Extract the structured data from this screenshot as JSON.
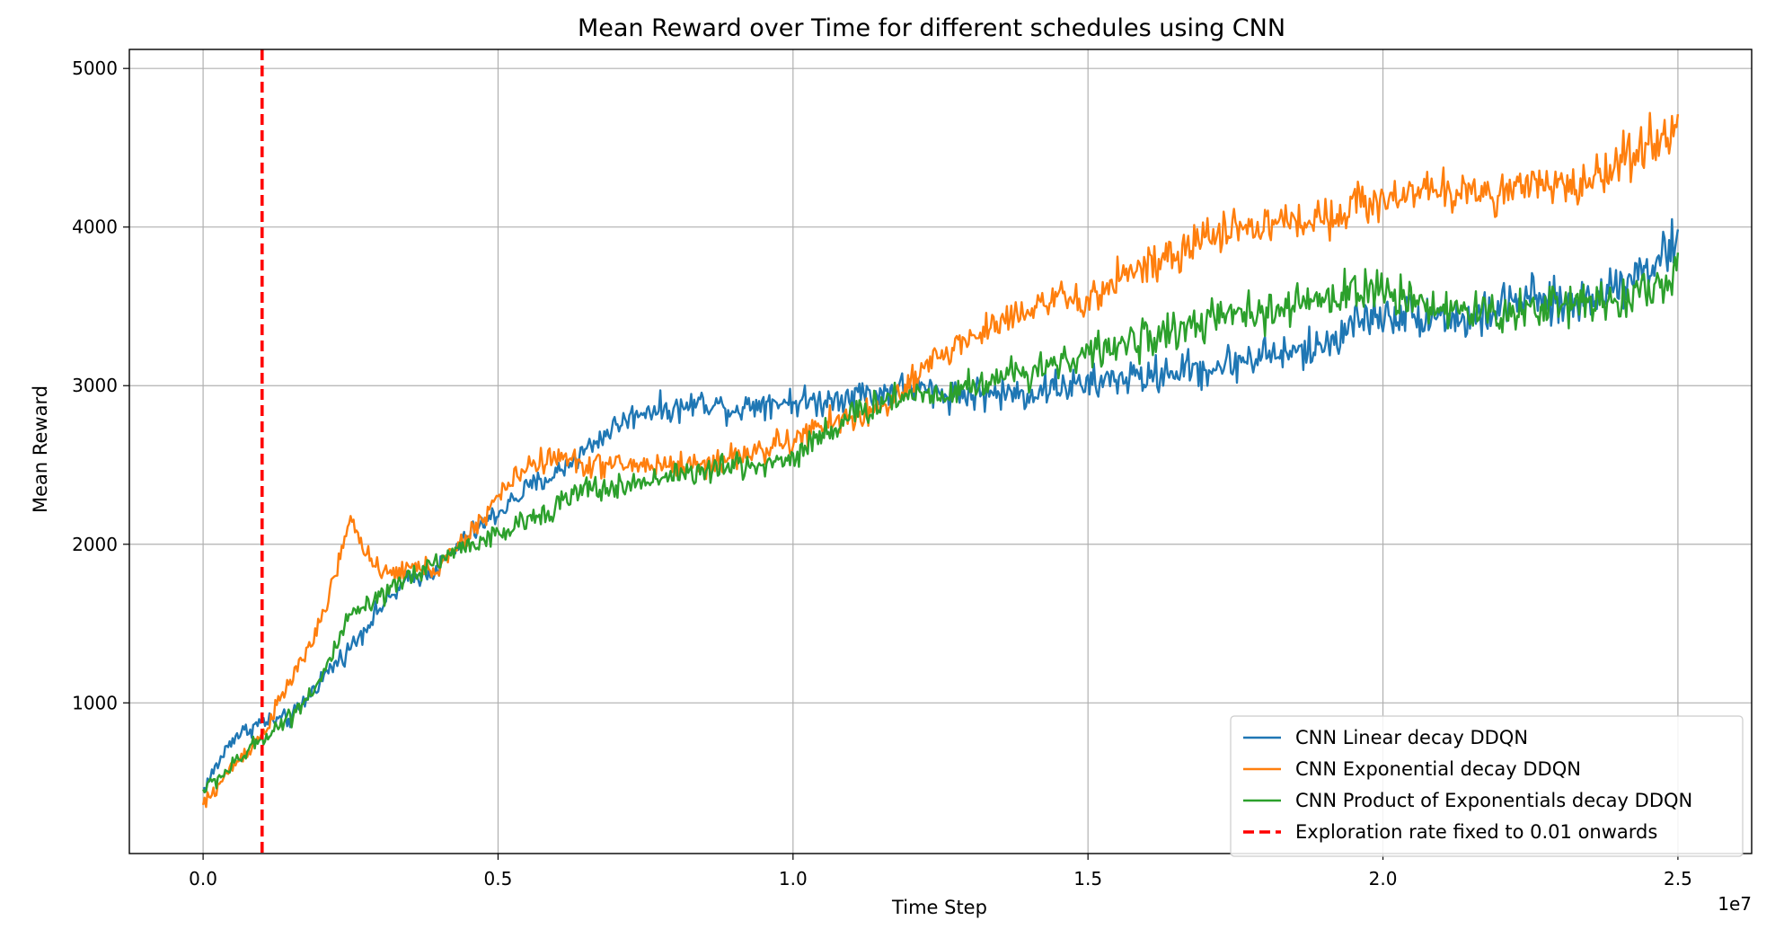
{
  "chart_data": {
    "type": "line",
    "title": "Mean Reward over Time for different schedules using CNN",
    "xlabel": "Time Step",
    "ylabel": "Mean Reward",
    "x_offset_label": "1e7",
    "xlim": [
      -0.125,
      2.625
    ],
    "ylim": [
      50,
      5120
    ],
    "x_ticks": [
      0.0,
      0.5,
      1.0,
      1.5,
      2.0,
      2.5
    ],
    "x_tick_labels": [
      "0.0",
      "0.5",
      "1.0",
      "1.5",
      "2.0",
      "2.5"
    ],
    "y_ticks": [
      1000,
      2000,
      3000,
      4000,
      5000
    ],
    "y_tick_labels": [
      "1000",
      "2000",
      "3000",
      "4000",
      "5000"
    ],
    "grid": true,
    "legend_position": "lower-right",
    "series": [
      {
        "name": "CNN Linear decay DDQN",
        "color": "#1f77b4",
        "x": [
          0.0,
          0.05,
          0.1,
          0.15,
          0.2,
          0.25,
          0.3,
          0.35,
          0.4,
          0.45,
          0.5,
          0.55,
          0.6,
          0.65,
          0.7,
          0.75,
          0.8,
          0.85,
          0.9,
          0.95,
          1.0,
          1.05,
          1.1,
          1.15,
          1.2,
          1.25,
          1.3,
          1.35,
          1.4,
          1.45,
          1.5,
          1.55,
          1.6,
          1.65,
          1.7,
          1.75,
          1.8,
          1.85,
          1.9,
          1.95,
          2.0,
          2.05,
          2.1,
          2.15,
          2.2,
          2.25,
          2.3,
          2.35,
          2.4,
          2.45,
          2.5
        ],
        "y": [
          450,
          780,
          880,
          900,
          1150,
          1350,
          1600,
          1780,
          1850,
          2050,
          2200,
          2350,
          2450,
          2600,
          2750,
          2850,
          2850,
          2900,
          2850,
          2900,
          2900,
          2900,
          2950,
          2950,
          3000,
          2950,
          2950,
          2950,
          2950,
          3000,
          3000,
          3050,
          3050,
          3100,
          3100,
          3150,
          3200,
          3200,
          3250,
          3400,
          3450,
          3450,
          3450,
          3400,
          3500,
          3550,
          3500,
          3550,
          3650,
          3750,
          3900
        ]
      },
      {
        "name": "CNN Exponential decay DDQN",
        "color": "#ff7f0e",
        "x": [
          0.0,
          0.05,
          0.1,
          0.15,
          0.2,
          0.25,
          0.3,
          0.35,
          0.4,
          0.45,
          0.5,
          0.55,
          0.6,
          0.65,
          0.7,
          0.75,
          0.8,
          0.85,
          0.9,
          0.95,
          1.0,
          1.05,
          1.1,
          1.15,
          1.2,
          1.25,
          1.3,
          1.35,
          1.4,
          1.45,
          1.5,
          1.55,
          1.6,
          1.65,
          1.7,
          1.75,
          1.8,
          1.85,
          1.9,
          1.95,
          2.0,
          2.05,
          2.1,
          2.15,
          2.2,
          2.25,
          2.3,
          2.35,
          2.4,
          2.45,
          2.5
        ],
        "y": [
          350,
          600,
          800,
          1150,
          1500,
          2150,
          1800,
          1850,
          1850,
          2050,
          2300,
          2500,
          2550,
          2500,
          2500,
          2500,
          2500,
          2500,
          2550,
          2600,
          2650,
          2750,
          2800,
          2850,
          3000,
          3200,
          3300,
          3400,
          3500,
          3550,
          3500,
          3700,
          3750,
          3800,
          3950,
          4000,
          4000,
          4050,
          4050,
          4150,
          4150,
          4250,
          4200,
          4250,
          4200,
          4250,
          4250,
          4300,
          4400,
          4550,
          4600
        ]
      },
      {
        "name": "CNN Product of Exponentials decay DDQN",
        "color": "#2ca02c",
        "x": [
          0.0,
          0.05,
          0.1,
          0.15,
          0.2,
          0.25,
          0.3,
          0.35,
          0.4,
          0.45,
          0.5,
          0.55,
          0.6,
          0.65,
          0.7,
          0.75,
          0.8,
          0.85,
          0.9,
          0.95,
          1.0,
          1.05,
          1.1,
          1.15,
          1.2,
          1.25,
          1.3,
          1.35,
          1.4,
          1.45,
          1.5,
          1.55,
          1.6,
          1.65,
          1.7,
          1.75,
          1.8,
          1.85,
          1.9,
          1.95,
          2.0,
          2.05,
          2.1,
          2.15,
          2.2,
          2.25,
          2.3,
          2.35,
          2.4,
          2.45,
          2.5
        ],
        "y": [
          450,
          600,
          780,
          920,
          1150,
          1550,
          1650,
          1800,
          1900,
          2000,
          2050,
          2150,
          2250,
          2350,
          2350,
          2400,
          2450,
          2450,
          2500,
          2500,
          2550,
          2700,
          2800,
          2900,
          2950,
          2950,
          3000,
          3050,
          3100,
          3150,
          3200,
          3250,
          3300,
          3350,
          3400,
          3450,
          3450,
          3500,
          3550,
          3600,
          3600,
          3550,
          3500,
          3450,
          3450,
          3500,
          3500,
          3550,
          3550,
          3600,
          3700
        ]
      }
    ],
    "reference_line": {
      "name": "Exploration rate fixed to 0.01 onwards",
      "x": 0.1,
      "color": "#ff0000",
      "style": "dashed"
    }
  }
}
